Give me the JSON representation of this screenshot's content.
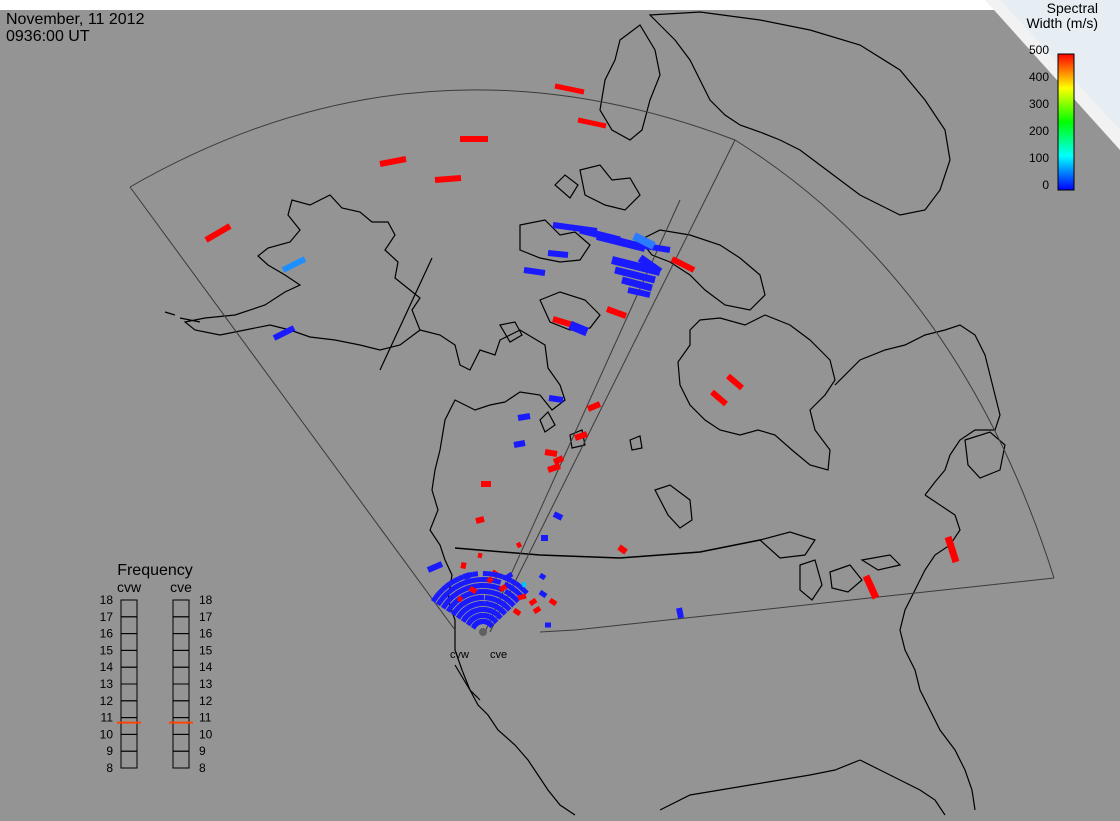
{
  "header": {
    "date": "November, 11 2012",
    "time": "0936:00 UT"
  },
  "colorbar": {
    "title_line1": "Spectral",
    "title_line2": "Width (m/s)",
    "ticks": [
      "500",
      "400",
      "300",
      "200",
      "100",
      "0"
    ],
    "colors": [
      "#ff0000",
      "#ffff00",
      "#00ff00",
      "#00ffff",
      "#0000ff"
    ]
  },
  "frequency_panel": {
    "title": "Frequency",
    "radars": [
      {
        "name": "cvw",
        "selected_mhz": 10.7
      },
      {
        "name": "cve",
        "selected_mhz": 10.7
      }
    ],
    "ticks": [
      "18",
      "17",
      "16",
      "15",
      "14",
      "13",
      "12",
      "11",
      "10",
      "9",
      "8"
    ],
    "marker_color": "#ff4400"
  },
  "radar_sites": [
    {
      "name": "cvw"
    },
    {
      "name": "cve"
    }
  ],
  "colors": {
    "background": "#949494",
    "land_outline": "#000000",
    "fov_outline": "#333333",
    "low_width": "#1a1aff",
    "high_width": "#ff0000"
  }
}
